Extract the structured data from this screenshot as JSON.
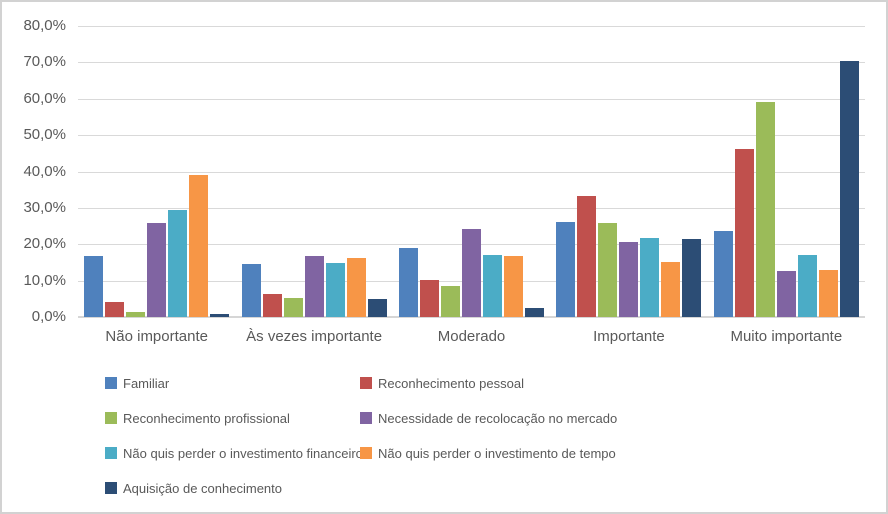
{
  "window": {
    "background": "#FFFFFF",
    "border_color": "#D2D2D2"
  },
  "chart_data": {
    "type": "bar",
    "title": "",
    "xlabel": "",
    "ylabel": "",
    "categories": [
      "Não importante",
      "Às vezes importante",
      "Moderado",
      "Importante",
      "Muito importante"
    ],
    "series": [
      {
        "name": "Familiar",
        "color": "#4F81BD",
        "values": [
          16.8,
          14.6,
          19.0,
          26.1,
          23.6
        ]
      },
      {
        "name": "Reconhecimento pessoal",
        "color": "#C0504D",
        "values": [
          4.0,
          6.3,
          10.3,
          33.2,
          46.2
        ]
      },
      {
        "name": "Reconhecimento profissional",
        "color": "#9BBB59",
        "values": [
          1.4,
          5.2,
          8.6,
          25.8,
          59.1
        ]
      },
      {
        "name": "Necessidade de recolocação no mercado",
        "color": "#8064A2",
        "values": [
          25.8,
          16.8,
          24.2,
          20.7,
          12.6
        ]
      },
      {
        "name": "Não quis perder o investimento financeiro",
        "color": "#4BACC6",
        "values": [
          29.4,
          14.8,
          17.0,
          21.7,
          17.0
        ]
      },
      {
        "name": "Não quis perder o investimento de tempo",
        "color": "#F79646",
        "values": [
          39.0,
          16.2,
          16.8,
          15.1,
          12.9
        ]
      },
      {
        "name": "Aquisição de conhecimento",
        "color": "#2C4D75",
        "values": [
          0.7,
          4.9,
          2.6,
          21.5,
          70.3
        ]
      }
    ],
    "y_axis": {
      "range": [
        0,
        80
      ],
      "ticks": [
        {
          "value": 80,
          "label": "80,0%"
        },
        {
          "value": 70,
          "label": "70,0%"
        },
        {
          "value": 60,
          "label": "60,0%"
        },
        {
          "value": 50,
          "label": "50,0%"
        },
        {
          "value": 40,
          "label": "40,0%"
        },
        {
          "value": 30,
          "label": "30,0%"
        },
        {
          "value": 20,
          "label": "20,0%"
        },
        {
          "value": 10,
          "label": "10,0%"
        },
        {
          "value": 0,
          "label": "0,0%"
        }
      ],
      "gridlines": true,
      "gridline_color": "#D9D9D9",
      "axis_line_color": "#D6D6D6",
      "label_color": "#595959"
    },
    "legend": {
      "position": "bottom",
      "columns": 2,
      "text_color": "#595959"
    }
  }
}
